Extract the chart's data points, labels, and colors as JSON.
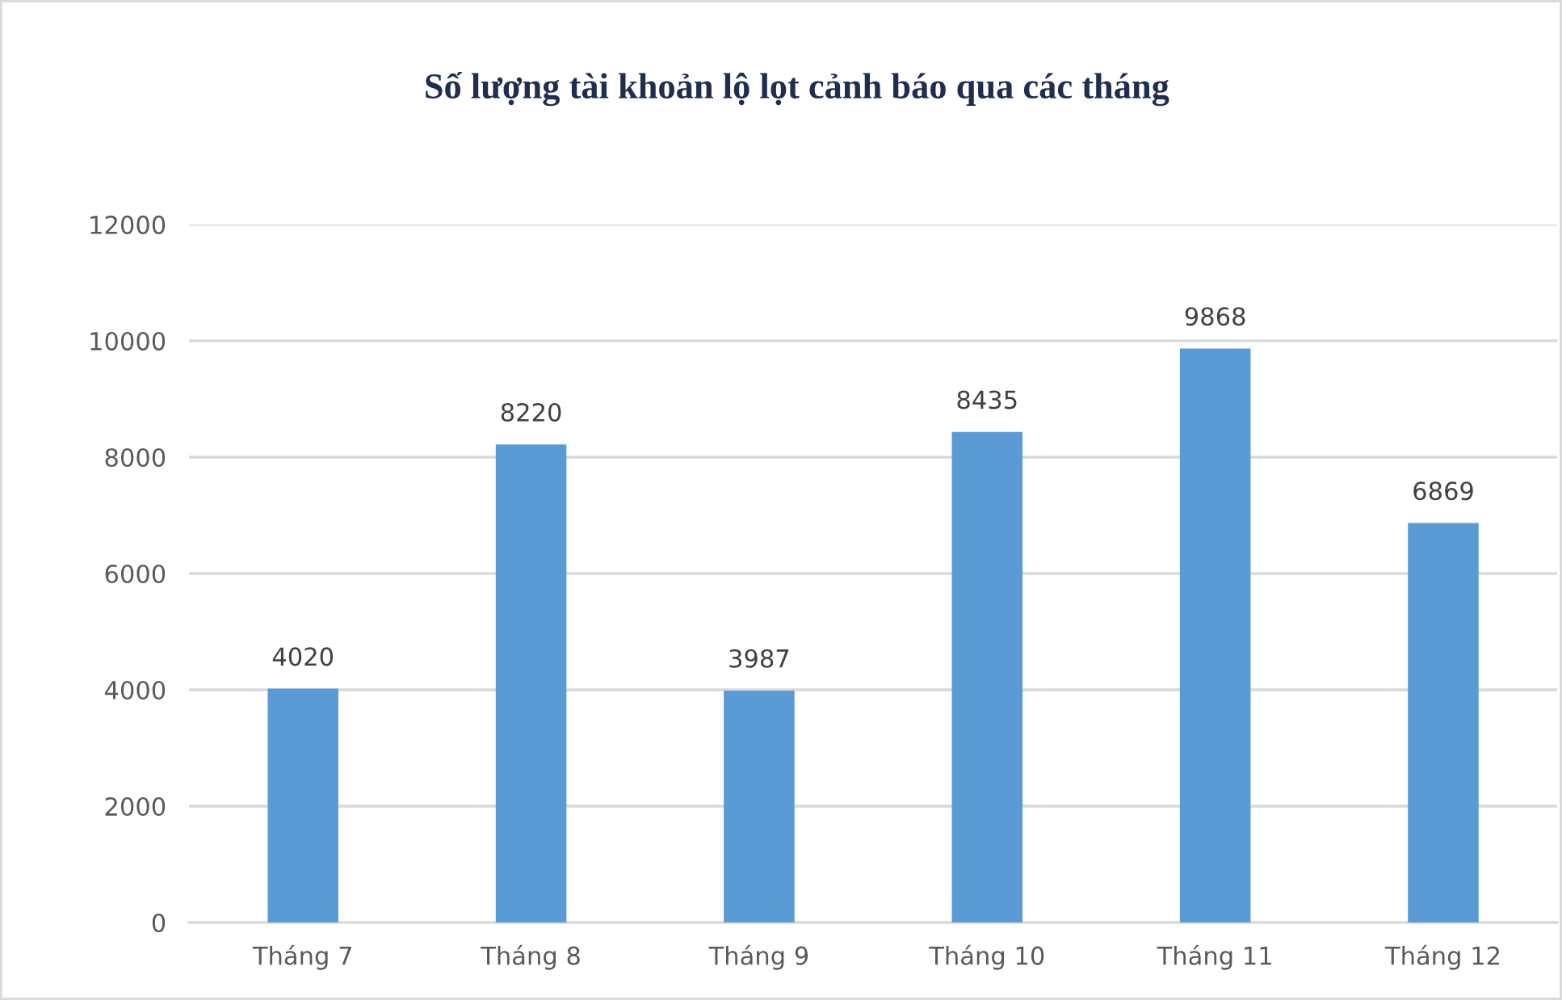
{
  "chart_data": {
    "type": "bar",
    "title": "Số lượng tài khoản lộ lọt cảnh báo qua các tháng",
    "categories": [
      "Tháng 7",
      "Tháng 8",
      "Tháng 9",
      "Tháng 10",
      "Tháng 11",
      "Tháng 12"
    ],
    "values": [
      4020,
      8220,
      3987,
      8435,
      9868,
      6869
    ],
    "color": "#5b9bd5",
    "ylim": [
      0,
      12000
    ],
    "yticks": [
      0,
      2000,
      4000,
      6000,
      8000,
      10000,
      12000
    ],
    "grid": "y",
    "data_labels": true
  }
}
